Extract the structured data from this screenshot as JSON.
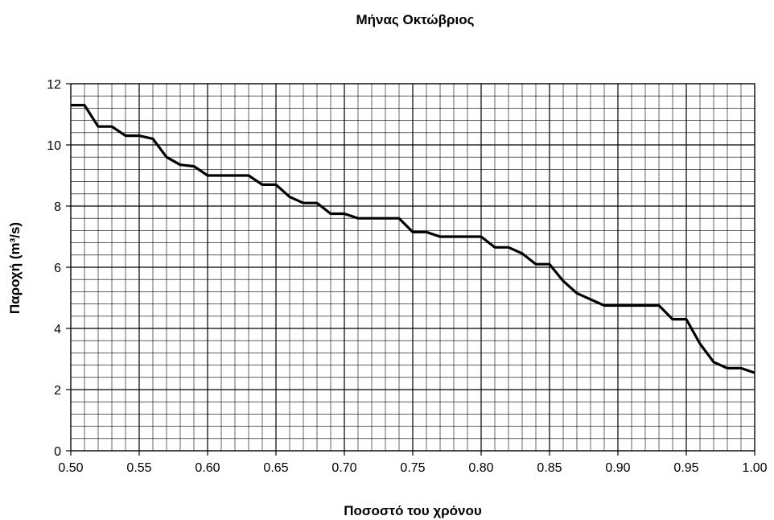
{
  "chart_data": {
    "type": "line",
    "title": "Μήνας Οκτώβριος",
    "xlabel": "Ποσοστό του χρόνου",
    "ylabel": "Παροχή (m³/s)",
    "xlim": [
      0.5,
      1.0
    ],
    "ylim": [
      0,
      12
    ],
    "x_ticks": [
      "0.50",
      "0.55",
      "0.60",
      "0.65",
      "0.70",
      "0.75",
      "0.80",
      "0.85",
      "0.90",
      "0.95",
      "1.00"
    ],
    "y_ticks": [
      "0",
      "2",
      "4",
      "6",
      "8",
      "10",
      "12"
    ],
    "grid": true,
    "series": [
      {
        "x": [
          0.5,
          0.51,
          0.52,
          0.53,
          0.54,
          0.55,
          0.56,
          0.57,
          0.58,
          0.59,
          0.6,
          0.61,
          0.62,
          0.63,
          0.64,
          0.65,
          0.66,
          0.67,
          0.68,
          0.69,
          0.7,
          0.71,
          0.72,
          0.73,
          0.74,
          0.75,
          0.76,
          0.77,
          0.78,
          0.79,
          0.8,
          0.81,
          0.82,
          0.83,
          0.84,
          0.85,
          0.86,
          0.87,
          0.88,
          0.89,
          0.9,
          0.91,
          0.92,
          0.93,
          0.94,
          0.95,
          0.96,
          0.97,
          0.98,
          0.99,
          1.0
        ],
        "y": [
          11.3,
          11.3,
          10.6,
          10.6,
          10.3,
          10.3,
          10.2,
          9.6,
          9.35,
          9.3,
          9.0,
          9.0,
          9.0,
          9.0,
          8.7,
          8.7,
          8.3,
          8.1,
          8.1,
          7.75,
          7.75,
          7.6,
          7.6,
          7.6,
          7.6,
          7.15,
          7.15,
          7.0,
          7.0,
          7.0,
          7.0,
          6.65,
          6.65,
          6.45,
          6.1,
          6.1,
          5.55,
          5.15,
          4.95,
          4.75,
          4.75,
          4.75,
          4.75,
          4.75,
          4.3,
          4.3,
          3.5,
          2.9,
          2.7,
          2.7,
          2.55
        ]
      }
    ]
  }
}
